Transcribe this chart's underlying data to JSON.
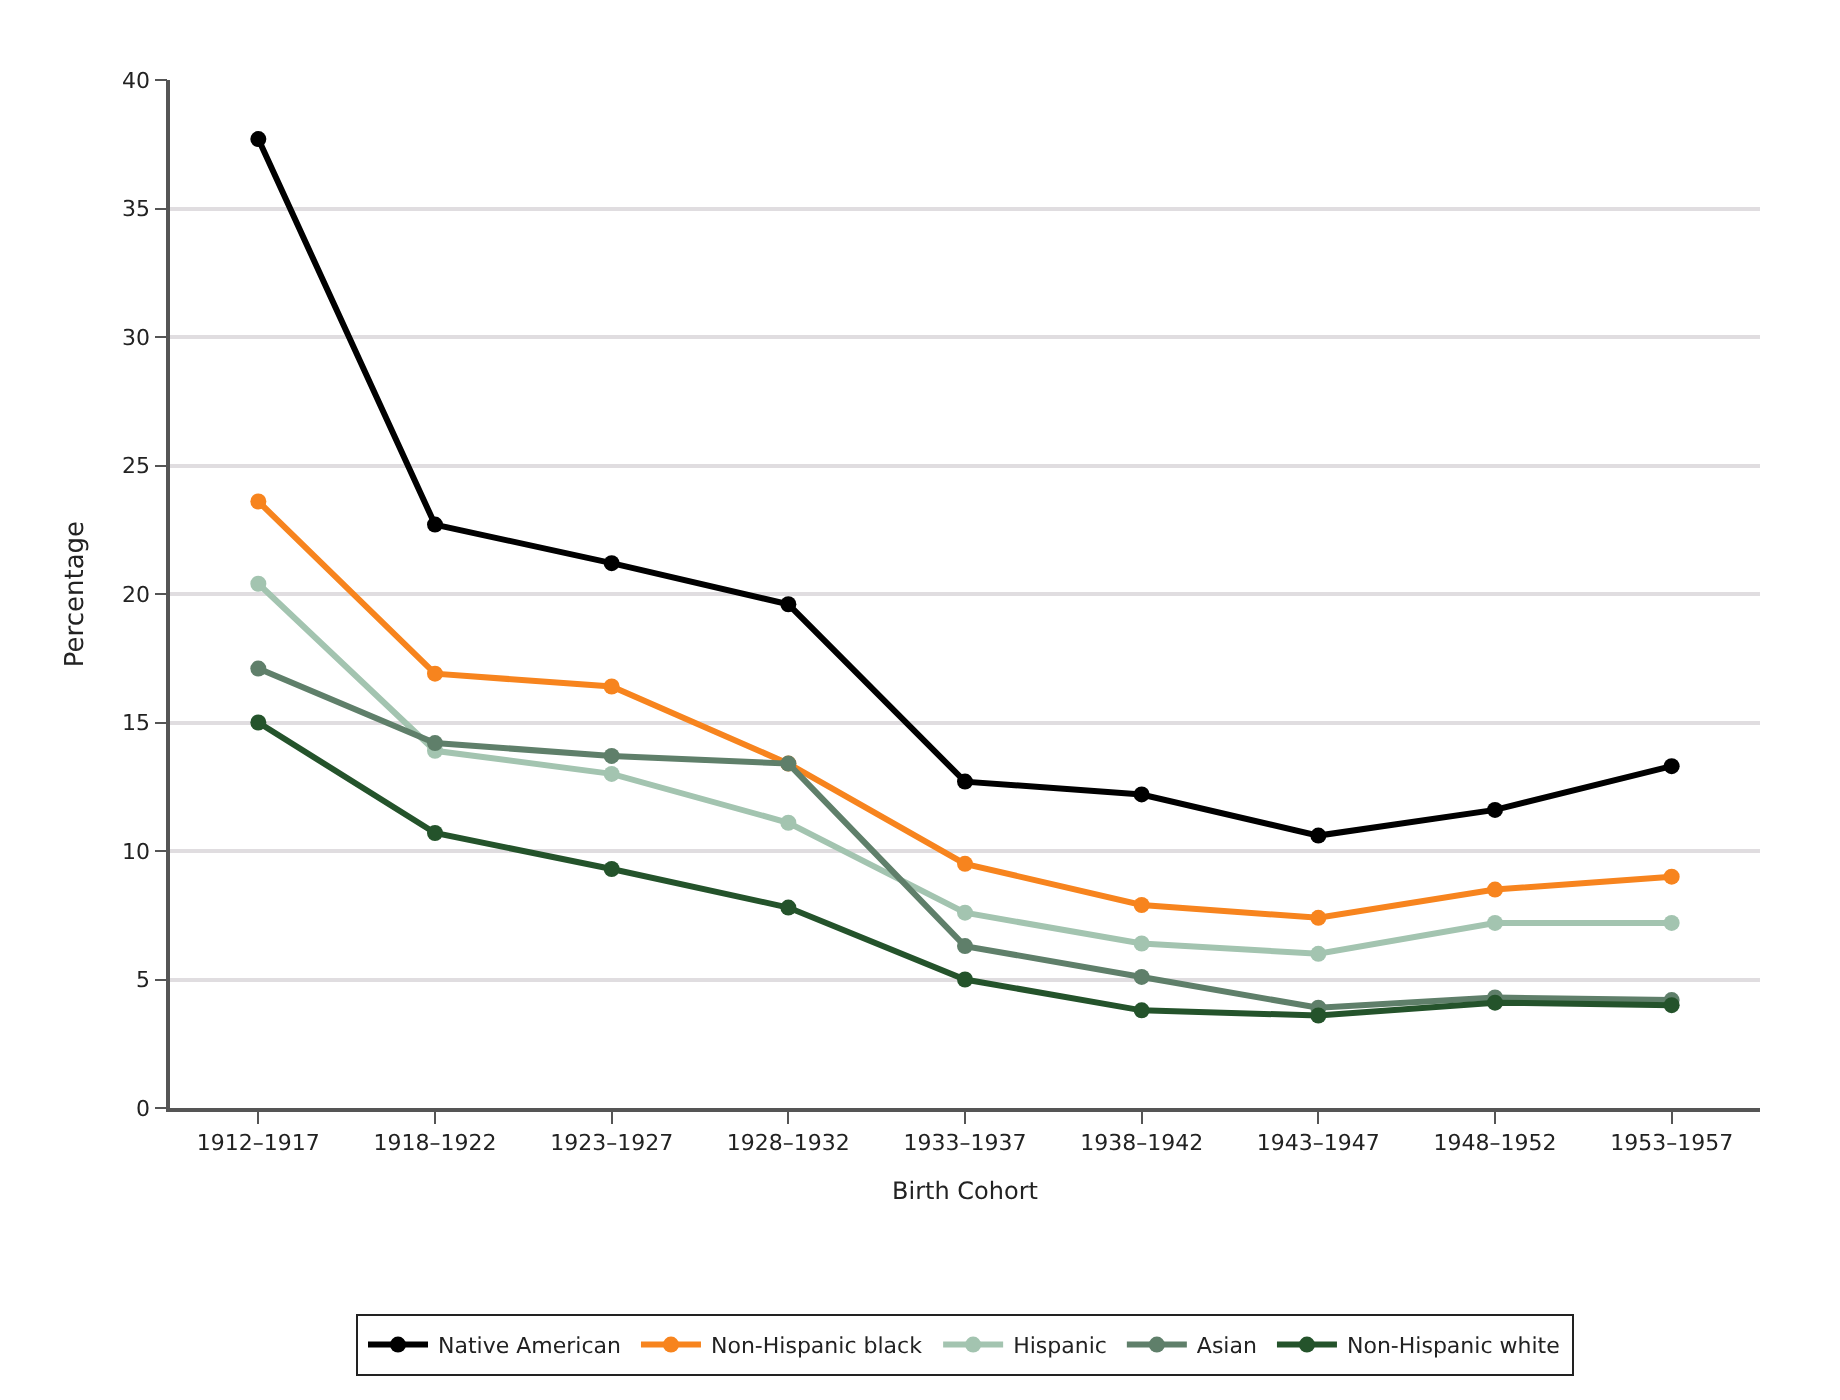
{
  "chart_data": {
    "type": "line",
    "xlabel": "Birth Cohort",
    "ylabel": "Percentage",
    "categories": [
      "1912–1917",
      "1918–1922",
      "1923–1927",
      "1928–1932",
      "1933–1937",
      "1938–1942",
      "1943–1947",
      "1948–1952",
      "1953–1957"
    ],
    "series": [
      {
        "name": "Native American",
        "color": "#000000",
        "values": [
          37.7,
          22.7,
          21.2,
          19.6,
          12.7,
          12.2,
          10.6,
          11.6,
          13.3
        ]
      },
      {
        "name": "Non-Hispanic black",
        "color": "#f7841e",
        "values": [
          23.6,
          16.9,
          16.4,
          13.4,
          9.5,
          7.9,
          7.4,
          8.5,
          9.0
        ]
      },
      {
        "name": "Hispanic",
        "color": "#a3c4b0",
        "values": [
          20.4,
          13.9,
          13.0,
          11.1,
          7.6,
          6.4,
          6.0,
          7.2,
          7.2
        ]
      },
      {
        "name": "Asian",
        "color": "#5f7f6a",
        "values": [
          17.1,
          14.2,
          13.7,
          13.4,
          6.3,
          5.1,
          3.9,
          4.3,
          4.2
        ]
      },
      {
        "name": "Non-Hispanic white",
        "color": "#24532b",
        "values": [
          15.0,
          10.7,
          9.3,
          7.8,
          5.0,
          3.8,
          3.6,
          4.1,
          4.0
        ]
      }
    ],
    "ylim": [
      0,
      40
    ],
    "yticks": [
      0,
      5,
      10,
      15,
      20,
      25,
      30,
      35,
      40
    ],
    "grid": "y",
    "legend": "bottom",
    "marker": "circle",
    "line_style": "solid"
  }
}
